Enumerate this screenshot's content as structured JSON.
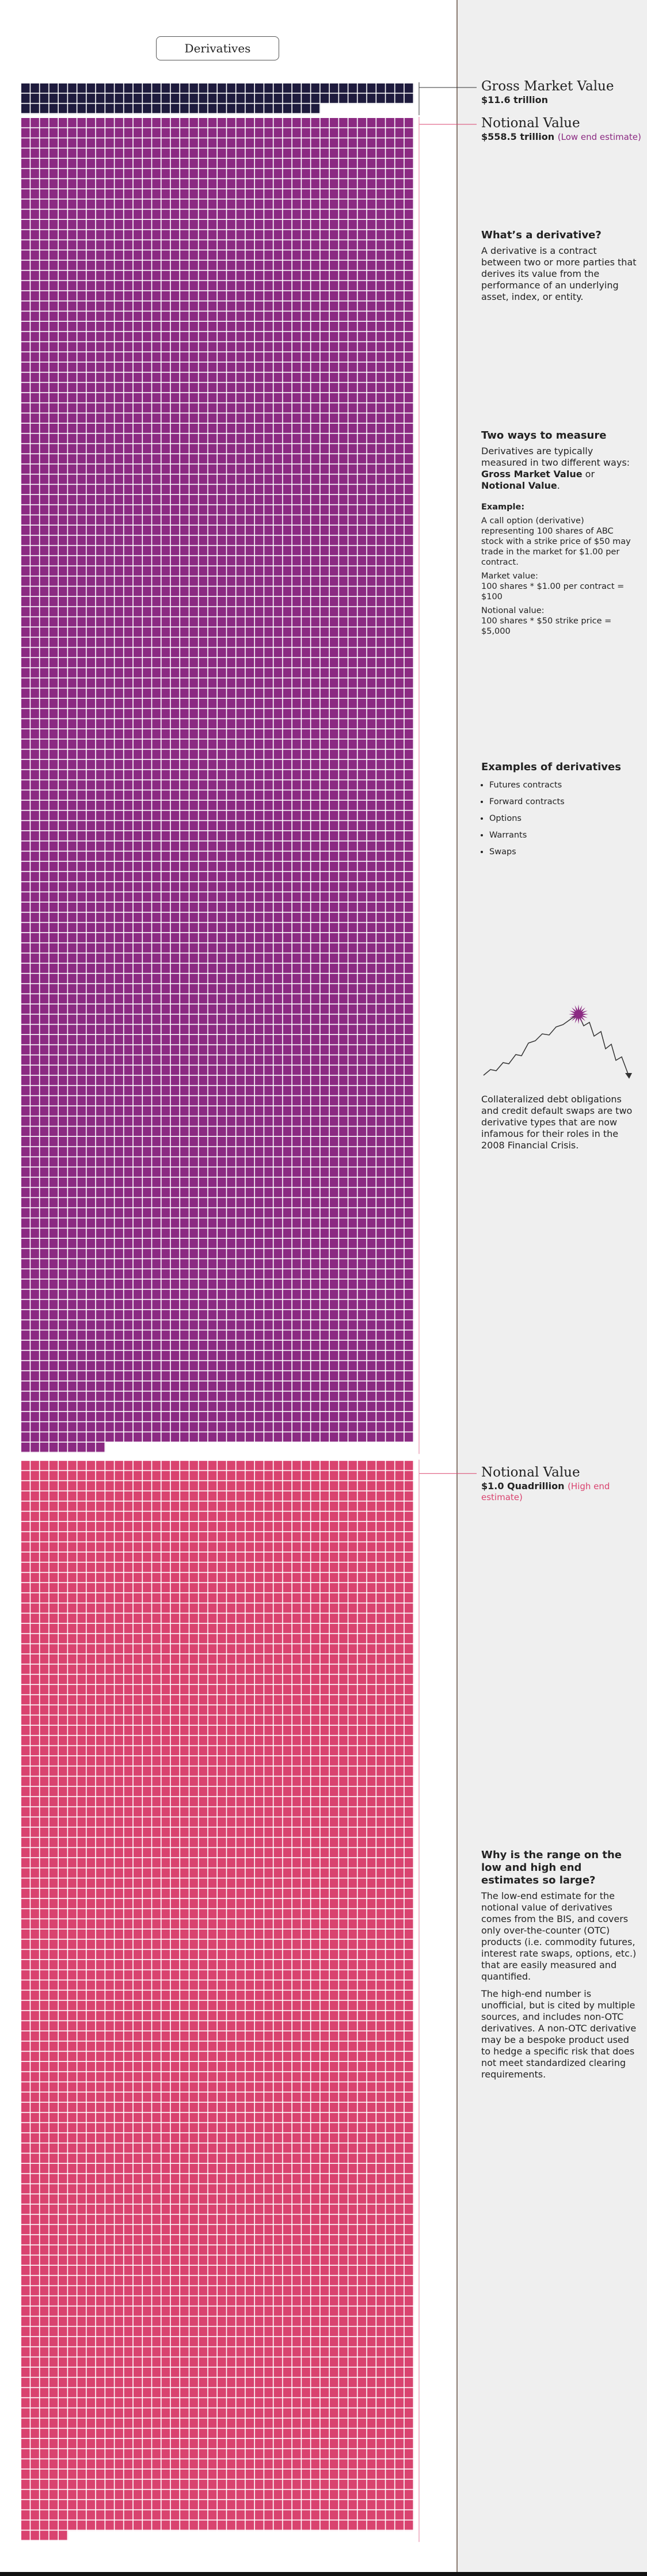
{
  "chart_data": {
    "type": "unit",
    "title": "Derivatives",
    "series": [
      {
        "name": "Gross Market Value",
        "values": [
          11.6
        ],
        "value_labels": [
          "$11.6 trillion"
        ],
        "color": "#1e1b3d"
      },
      {
        "name": "Notional Value",
        "values": [
          558.5
        ],
        "value_labels": [
          "$558.5 trillion"
        ],
        "note": "(Low end estimate)",
        "color": "#8b2a82"
      },
      {
        "name": "Notional Value",
        "values": [
          1000
        ],
        "value_labels": [
          "$1.0 Quadrillion"
        ],
        "note": "(High end estimate)",
        "color": "#d9436f"
      }
    ]
  },
  "sidebar": {
    "what": {
      "heading": "What’s a derivative?",
      "text": "A derivative is a contract between two or more parties that derives its value from the performance of an underlying asset, index, or entity."
    },
    "measure": {
      "heading": "Two ways to measure",
      "runs": [
        "Derivatives are typically measured in two different ways: ",
        "Gross Market Value",
        " or ",
        "Notional Value",
        "."
      ],
      "example_heading": "Example:",
      "example": "A call option (derivative) representing 100 shares of ABC stock with a strike price of $50 may trade in the market for $1.00 per contract.",
      "market_label": "Market value:",
      "market": "100 shares * $1.00 per contract = $100",
      "notional_label": "Notional value:",
      "notional": "100 shares * $50 strike price = $5,000"
    },
    "examples": {
      "heading": "Examples of derivatives",
      "items": [
        "Futures contracts",
        "Forward contracts",
        "Options",
        "Warrants",
        "Swaps"
      ]
    },
    "crisis": "Collateralized debt obligations and credit default swaps are two derivative types that are now infamous for their roles in the 2008 Financial Crisis.",
    "range": {
      "heading": "Why is the range on the low and high end estimates so large?",
      "paragraphs": [
        "The low-end estimate for the notional value of derivatives comes from the BIS, and covers only over-the-counter (OTC) products (i.e. commodity futures, interest rate swaps, options, etc.) that are easily measured and quantified.",
        "The high-end number is unofficial, but is cited by multiple sources, and includes non-OTC derivatives. A non-OTC derivative may be a bespoke product used to hedge a specific risk that does not meet standardized clearing requirements."
      ]
    }
  }
}
